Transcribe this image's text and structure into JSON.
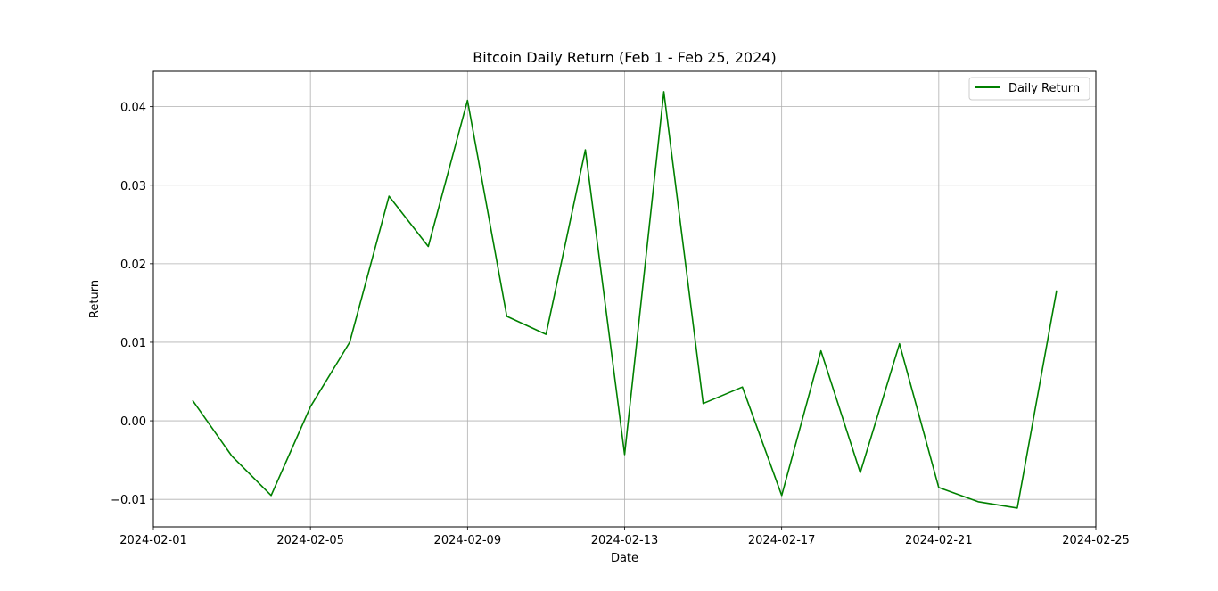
{
  "chart_data": {
    "type": "line",
    "title": "Bitcoin Daily Return (Feb 1 - Feb 25, 2024)",
    "xlabel": "Date",
    "ylabel": "Return",
    "xlim": [
      "2024-02-01",
      "2024-02-25"
    ],
    "ylim": [
      -0.0135,
      0.0445
    ],
    "x_ticks": [
      "2024-02-01",
      "2024-02-05",
      "2024-02-09",
      "2024-02-13",
      "2024-02-17",
      "2024-02-21",
      "2024-02-25"
    ],
    "y_ticks": [
      -0.01,
      0.0,
      0.01,
      0.02,
      0.03,
      0.04
    ],
    "y_tick_labels": [
      "−0.01",
      "0.00",
      "0.01",
      "0.02",
      "0.03",
      "0.04"
    ],
    "grid": true,
    "legend_position": "top-right",
    "series": [
      {
        "name": "Daily Return",
        "color": "#008000",
        "x": [
          "2024-02-02",
          "2024-02-03",
          "2024-02-04",
          "2024-02-05",
          "2024-02-06",
          "2024-02-07",
          "2024-02-08",
          "2024-02-09",
          "2024-02-10",
          "2024-02-11",
          "2024-02-12",
          "2024-02-13",
          "2024-02-14",
          "2024-02-15",
          "2024-02-16",
          "2024-02-17",
          "2024-02-18",
          "2024-02-19",
          "2024-02-20",
          "2024-02-21",
          "2024-02-22",
          "2024-02-23",
          "2024-02-24"
        ],
        "values": [
          0.0026,
          -0.0045,
          -0.0095,
          0.0018,
          0.01,
          0.0286,
          0.0222,
          0.0408,
          0.0133,
          0.011,
          0.0345,
          -0.0043,
          0.0419,
          0.0022,
          0.0043,
          -0.0095,
          0.0089,
          -0.0066,
          0.0098,
          -0.0085,
          -0.0103,
          -0.0111,
          0.0166
        ]
      }
    ]
  }
}
